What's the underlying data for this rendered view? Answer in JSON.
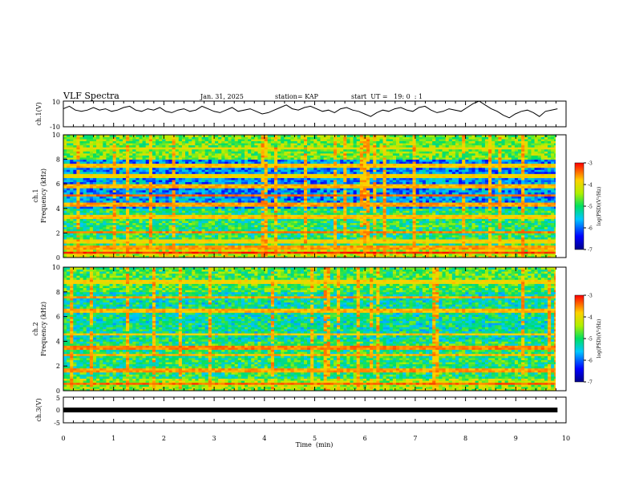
{
  "header": {
    "title": "VLF Spectra",
    "date": "Jan. 31, 2025",
    "station": "station= KAP",
    "start": "start  UT =   19: 0  : 1"
  },
  "chart_data": [
    {
      "type": "line",
      "name": "ch1-waveform",
      "ylabel": "ch.1(V)",
      "ylim": [
        -10,
        10
      ],
      "y_ticks": [
        "10",
        "-10"
      ],
      "xlim": [
        0,
        10
      ],
      "x_extent": [
        0,
        9.83
      ],
      "series": [
        {
          "values": [
            4,
            6,
            3,
            2,
            3,
            5,
            3,
            4,
            2,
            3,
            5,
            6,
            3,
            2,
            4,
            3,
            5,
            2,
            1,
            3,
            4,
            2,
            3,
            6,
            4,
            2,
            1,
            3,
            5,
            2,
            3,
            4,
            2,
            0,
            1,
            3,
            5,
            7,
            4,
            3,
            5,
            6,
            4,
            2,
            3,
            1,
            4,
            5,
            3,
            2,
            0,
            -2,
            1,
            3,
            2,
            4,
            5,
            3,
            2,
            5,
            6,
            3,
            1,
            2,
            4,
            3,
            2,
            5,
            8,
            10,
            7,
            4,
            2,
            -1,
            -3,
            0,
            2,
            3,
            1,
            -2,
            2,
            3,
            4
          ]
        }
      ]
    },
    {
      "type": "heatmap",
      "name": "ch1-spectrogram",
      "ylabel": "ch.1",
      "ylabel2": "Frequency (kHz)",
      "ylim": [
        0,
        10
      ],
      "y_ticks": [
        "0",
        "2",
        "4",
        "6",
        "8",
        "10"
      ],
      "xlim": [
        0,
        10
      ],
      "x_extent": [
        0,
        9.83
      ],
      "colorbar": {
        "label": "log(PSD)(V²/Hz)",
        "range": [
          -7,
          -3
        ],
        "ticks": [
          "-3",
          "-4",
          "-5",
          "-6",
          "-7"
        ]
      },
      "bands_khz": [
        {
          "f": 0.4,
          "level": -3.2
        },
        {
          "f": 0.8,
          "level": -3.6
        },
        {
          "f": 1.3,
          "level": -3.9
        },
        {
          "f": 2.1,
          "level": -3.5
        },
        {
          "f": 3.3,
          "level": -3.8
        },
        {
          "f": 4.3,
          "level": -3.6
        },
        {
          "f": 5.1,
          "level": -3.4
        },
        {
          "f": 5.8,
          "level": -3.7
        },
        {
          "f": 6.7,
          "level": -3.9
        },
        {
          "f": 7.5,
          "level": -3.8
        },
        {
          "f": 8.9,
          "level": -4.0
        }
      ],
      "background": [
        {
          "f_min": 0,
          "f_max": 1.0,
          "level": -4.2
        },
        {
          "f_min": 1.0,
          "f_max": 4.0,
          "level": -5.0
        },
        {
          "f_min": 4.0,
          "f_max": 8.0,
          "level": -5.8
        },
        {
          "f_min": 8.0,
          "f_max": 10.0,
          "level": -4.6
        }
      ]
    },
    {
      "type": "heatmap",
      "name": "ch2-spectrogram",
      "ylabel": "ch.2",
      "ylabel2": "Frequency (kHz)",
      "ylim": [
        0,
        10
      ],
      "y_ticks": [
        "0",
        "2",
        "4",
        "6",
        "8",
        "10"
      ],
      "xlim": [
        0,
        10
      ],
      "x_extent": [
        0,
        9.83
      ],
      "colorbar": {
        "label": "log(PSD)(V²/Hz)",
        "range": [
          -7,
          -3
        ],
        "ticks": [
          "-3",
          "-4",
          "-5",
          "-6",
          "-7"
        ]
      },
      "bands_khz": [
        {
          "f": 0.6,
          "level": -3.4
        },
        {
          "f": 1.7,
          "level": -3.6
        },
        {
          "f": 2.9,
          "level": -3.7
        },
        {
          "f": 3.5,
          "level": -3.5
        },
        {
          "f": 4.6,
          "level": -3.8
        },
        {
          "f": 6.5,
          "level": -3.7
        },
        {
          "f": 7.6,
          "level": -3.6
        },
        {
          "f": 8.8,
          "level": -3.9
        }
      ],
      "background": [
        {
          "f_min": 0,
          "f_max": 1.0,
          "level": -4.4
        },
        {
          "f_min": 1.0,
          "f_max": 4.0,
          "level": -5.0
        },
        {
          "f_min": 4.0,
          "f_max": 8.0,
          "level": -5.2
        },
        {
          "f_min": 8.0,
          "f_max": 10.0,
          "level": -4.8
        }
      ]
    },
    {
      "type": "line",
      "name": "ch3-trace",
      "ylabel": "ch.3(V)",
      "ylim": [
        -5,
        5
      ],
      "y_ticks": [
        "5",
        "0",
        "-5"
      ],
      "xlabel": "Time  (min)",
      "xlim": [
        0,
        10
      ],
      "x_ticks": [
        "0",
        "1",
        "2",
        "3",
        "4",
        "5",
        "6",
        "7",
        "8",
        "9",
        "10"
      ],
      "x_extent": [
        0,
        9.83
      ],
      "series": [
        {
          "values": [
            0,
            0
          ]
        }
      ]
    }
  ]
}
